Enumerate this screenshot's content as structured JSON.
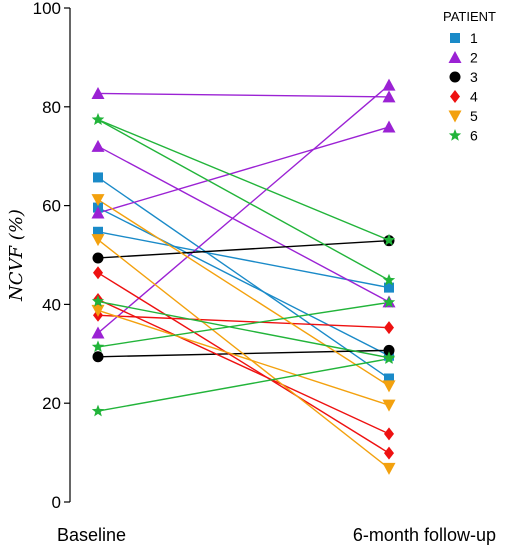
{
  "chart_data": {
    "type": "line",
    "ylabel": "NCVF (%)",
    "ylim": [
      0,
      100
    ],
    "yticks": [
      0,
      20,
      40,
      60,
      80,
      100
    ],
    "categories": [
      "Baseline",
      "6-month follow-up"
    ],
    "legend": {
      "title": "PATIENT",
      "placement": "top-right",
      "entries": [
        {
          "label": "1",
          "color": "#1a8ac8",
          "marker": "square"
        },
        {
          "label": "2",
          "color": "#9b22d4",
          "marker": "triangle-up"
        },
        {
          "label": "3",
          "color": "#000000",
          "marker": "circle"
        },
        {
          "label": "4",
          "color": "#ee1111",
          "marker": "diamond"
        },
        {
          "label": "5",
          "color": "#f3a10e",
          "marker": "triangle-down"
        },
        {
          "label": "6",
          "color": "#22b43a",
          "marker": "star"
        }
      ]
    },
    "series": [
      {
        "patient": "1",
        "values": [
          65.7,
          25.0
        ]
      },
      {
        "patient": "1",
        "values": [
          59.6,
          29.6
        ]
      },
      {
        "patient": "1",
        "values": [
          54.7,
          43.4
        ]
      },
      {
        "patient": "2",
        "values": [
          82.7,
          82.0
        ]
      },
      {
        "patient": "2",
        "values": [
          72.0,
          40.5
        ]
      },
      {
        "patient": "2",
        "values": [
          58.5,
          75.9
        ]
      },
      {
        "patient": "2",
        "values": [
          34.2,
          84.4
        ]
      },
      {
        "patient": "3",
        "values": [
          49.4,
          52.9
        ]
      },
      {
        "patient": "3",
        "values": [
          29.4,
          30.7
        ]
      },
      {
        "patient": "4",
        "values": [
          46.4,
          9.9
        ]
      },
      {
        "patient": "4",
        "values": [
          41.0,
          13.8
        ]
      },
      {
        "patient": "4",
        "values": [
          37.8,
          35.3
        ]
      },
      {
        "patient": "5",
        "values": [
          61.2,
          23.5
        ]
      },
      {
        "patient": "5",
        "values": [
          53.1,
          6.8
        ]
      },
      {
        "patient": "5",
        "values": [
          38.8,
          19.6
        ]
      },
      {
        "patient": "6",
        "values": [
          77.4,
          53.0
        ]
      },
      {
        "patient": "6",
        "values": [
          77.4,
          44.9
        ]
      },
      {
        "patient": "6",
        "values": [
          40.6,
          29.2
        ]
      },
      {
        "patient": "6",
        "values": [
          31.4,
          40.4
        ]
      },
      {
        "patient": "6",
        "values": [
          18.4,
          29.0
        ]
      }
    ]
  }
}
